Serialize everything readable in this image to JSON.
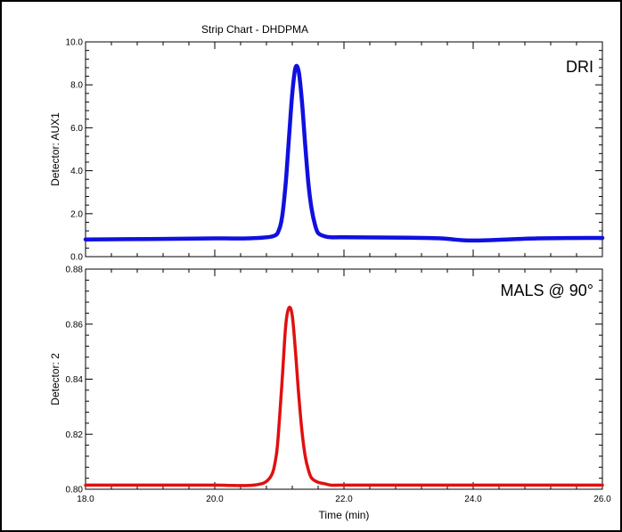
{
  "chart_data": [
    {
      "type": "line",
      "title": "Strip Chart - DHDPMA",
      "ylabel": "Detector:  AUX1",
      "annotation": "DRI",
      "xlim": [
        18.0,
        26.0
      ],
      "ylim": [
        0.0,
        10.0
      ],
      "y_ticks": [
        0.0,
        2.0,
        4.0,
        6.0,
        8.0,
        10.0
      ],
      "y_tick_labels": [
        "0.0",
        "2.0",
        "4.0",
        "6.0",
        "8.0",
        "10.0"
      ],
      "grid": false,
      "series": [
        {
          "color": "#1010e0",
          "x": [
            18.0,
            19.0,
            20.0,
            20.5,
            20.9,
            21.0,
            21.05,
            21.1,
            21.15,
            21.2,
            21.25,
            21.3,
            21.35,
            21.4,
            21.45,
            21.5,
            21.55,
            21.6,
            21.7,
            21.8,
            22.0,
            23.0,
            23.5,
            24.0,
            25.0,
            26.0
          ],
          "y": [
            0.8,
            0.82,
            0.85,
            0.85,
            0.95,
            1.3,
            2.0,
            3.5,
            5.6,
            7.6,
            8.8,
            8.6,
            7.2,
            5.2,
            3.4,
            2.2,
            1.5,
            1.1,
            0.95,
            0.9,
            0.9,
            0.88,
            0.85,
            0.75,
            0.85,
            0.87
          ]
        }
      ]
    },
    {
      "type": "line",
      "xlabel": "Time (min)",
      "ylabel": "Detector:  2",
      "annotation": "MALS @ 90°",
      "xlim": [
        18.0,
        26.0
      ],
      "ylim": [
        0.8,
        0.88
      ],
      "x_ticks": [
        18.0,
        20.0,
        22.0,
        24.0,
        26.0
      ],
      "x_tick_labels": [
        "18.0",
        "20.0",
        "22.0",
        "24.0",
        "26.0"
      ],
      "y_ticks": [
        0.8,
        0.82,
        0.84,
        0.86,
        0.88
      ],
      "y_tick_labels": [
        "0.80",
        "0.82",
        "0.84",
        "0.86",
        "0.88"
      ],
      "grid": false,
      "series": [
        {
          "color": "#e01010",
          "x": [
            18.0,
            19.0,
            20.0,
            20.6,
            20.85,
            20.95,
            21.0,
            21.05,
            21.1,
            21.15,
            21.2,
            21.25,
            21.3,
            21.35,
            21.4,
            21.45,
            21.5,
            21.6,
            21.7,
            21.8,
            22.0,
            23.0,
            24.0,
            25.0,
            26.0
          ],
          "y": [
            0.8015,
            0.8015,
            0.8015,
            0.8015,
            0.804,
            0.812,
            0.825,
            0.842,
            0.86,
            0.866,
            0.863,
            0.85,
            0.834,
            0.821,
            0.812,
            0.807,
            0.804,
            0.8025,
            0.802,
            0.8015,
            0.8015,
            0.8015,
            0.8015,
            0.8015,
            0.8015
          ]
        }
      ]
    }
  ]
}
